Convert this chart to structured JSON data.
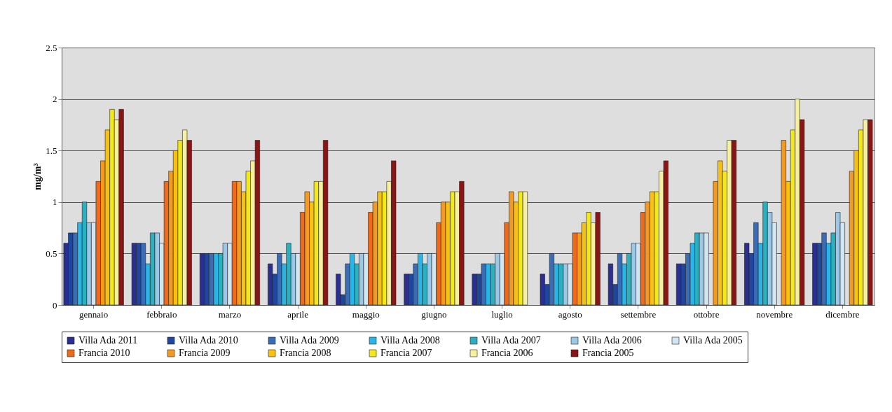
{
  "chart_data": {
    "type": "bar",
    "ylabel": "mg/m³",
    "categories": [
      "gennaio",
      "febbraio",
      "marzo",
      "aprile",
      "maggio",
      "giugno",
      "luglio",
      "agosto",
      "settembre",
      "ottobre",
      "novembre",
      "dicembre"
    ],
    "series": [
      {
        "name": "Villa Ada 2011",
        "color": "#2b2f8f",
        "values": [
          0.6,
          0.6,
          0.5,
          0.4,
          0.3,
          0.3,
          0.3,
          0.3,
          0.4,
          0.4,
          0.6,
          0.6
        ]
      },
      {
        "name": "Villa Ada 2010",
        "color": "#1f47a0",
        "values": [
          0.7,
          0.6,
          0.5,
          0.3,
          0.1,
          0.3,
          0.3,
          0.2,
          0.2,
          0.4,
          0.5,
          0.6
        ]
      },
      {
        "name": "Villa Ada 2009",
        "color": "#3a6db5",
        "values": [
          0.7,
          0.6,
          0.5,
          0.5,
          0.4,
          0.4,
          0.4,
          0.5,
          0.5,
          0.5,
          0.8,
          0.7
        ]
      },
      {
        "name": "Villa Ada 2008",
        "color": "#29b5e8",
        "values": [
          0.8,
          0.4,
          0.5,
          0.4,
          0.5,
          0.5,
          0.4,
          0.4,
          0.4,
          0.6,
          0.6,
          0.6
        ]
      },
      {
        "name": "Villa Ada 2007",
        "color": "#2bb0c0",
        "values": [
          1.0,
          0.7,
          0.5,
          0.6,
          0.4,
          0.4,
          0.4,
          0.4,
          0.5,
          0.7,
          1.0,
          0.7
        ]
      },
      {
        "name": "Villa Ada 2006",
        "color": "#9cc8e8",
        "values": [
          0.8,
          0.7,
          0.6,
          0.5,
          0.5,
          0.5,
          0.5,
          0.4,
          0.6,
          0.7,
          0.9,
          0.9
        ]
      },
      {
        "name": "Villa Ada 2005",
        "color": "#d2e6f2",
        "values": [
          0.8,
          0.6,
          0.6,
          0.5,
          0.5,
          0.5,
          0.5,
          0.4,
          0.6,
          0.7,
          0.8,
          0.8
        ]
      },
      {
        "name": "Francia 2010",
        "color": "#f06a1c",
        "values": [
          1.2,
          1.2,
          1.2,
          0.9,
          0.9,
          0.8,
          0.8,
          0.7,
          0.9,
          null,
          null,
          null
        ]
      },
      {
        "name": "Francia 2009",
        "color": "#f59a20",
        "values": [
          1.4,
          1.3,
          1.2,
          1.1,
          1.0,
          1.0,
          1.1,
          0.7,
          1.0,
          1.2,
          1.6,
          1.3
        ]
      },
      {
        "name": "Francia 2008",
        "color": "#f8c010",
        "values": [
          1.7,
          1.5,
          1.1,
          1.0,
          1.1,
          1.0,
          1.0,
          0.8,
          1.1,
          1.4,
          1.2,
          1.5
        ]
      },
      {
        "name": "Francia 2007",
        "color": "#f3e81a",
        "values": [
          1.9,
          1.6,
          1.3,
          1.2,
          1.1,
          1.1,
          1.1,
          0.9,
          1.1,
          1.3,
          1.7,
          1.7
        ]
      },
      {
        "name": "Francia 2006",
        "color": "#f7f0a0",
        "values": [
          1.8,
          1.7,
          1.4,
          1.2,
          1.2,
          1.1,
          1.1,
          0.8,
          1.3,
          1.6,
          2.0,
          1.8
        ]
      },
      {
        "name": "Francia 2005",
        "color": "#8b1515",
        "values": [
          1.9,
          1.6,
          1.6,
          1.6,
          1.4,
          1.2,
          null,
          0.9,
          1.4,
          1.6,
          1.8,
          1.8
        ]
      }
    ],
    "ylim": [
      0,
      2.5
    ],
    "yticks": [
      0,
      0.5,
      1,
      1.5,
      2,
      2.5
    ],
    "grid": "y",
    "legend": "bottom"
  }
}
